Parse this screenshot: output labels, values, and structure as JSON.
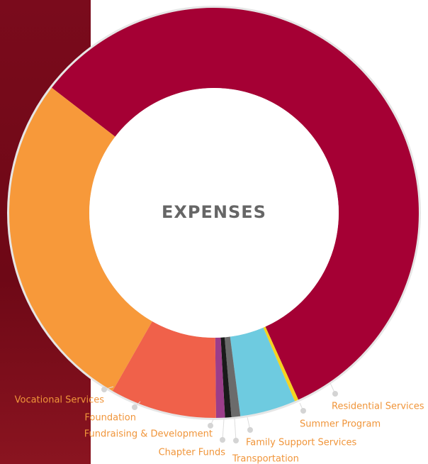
{
  "chart_data": {
    "type": "donut",
    "title": "EXPENSES",
    "categories": [
      "Residential Services",
      "Summer Program",
      "Family Support Services",
      "Transportation",
      "Chapter Funds",
      "Fundraising & Development",
      "Foundation",
      "Vocational Services"
    ],
    "values": [
      57.8,
      0.3,
      4.4,
      0.7,
      0.5,
      0.7,
      8.4,
      27.2
    ],
    "colors": [
      "#a50034",
      "#f5d320",
      "#6ecbe0",
      "#6b6b6b",
      "#1a1a1a",
      "#9b3d8a",
      "#f0614a",
      "#f7993a"
    ]
  }
}
